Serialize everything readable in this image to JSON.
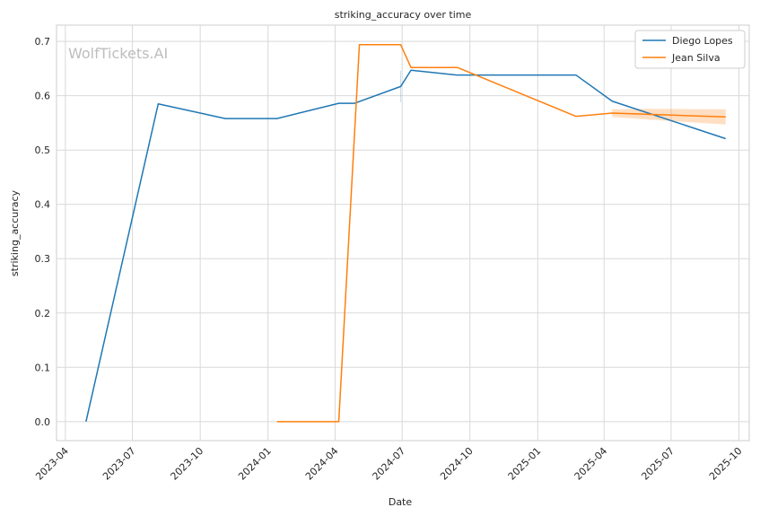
{
  "chart_data": {
    "type": "line",
    "title": "striking_accuracy over time",
    "xlabel": "Date",
    "ylabel": "striking_accuracy",
    "watermark": "WolfTickets.AI",
    "x_range": [
      "2023-03-20",
      "2025-10-15"
    ],
    "ylim": [
      -0.035,
      0.73
    ],
    "x_ticks": [
      {
        "date": "2023-04-01",
        "label": "2023-04"
      },
      {
        "date": "2023-07-01",
        "label": "2023-07"
      },
      {
        "date": "2023-10-01",
        "label": "2023-10"
      },
      {
        "date": "2024-01-01",
        "label": "2024-01"
      },
      {
        "date": "2024-04-01",
        "label": "2024-04"
      },
      {
        "date": "2024-07-01",
        "label": "2024-07"
      },
      {
        "date": "2024-10-01",
        "label": "2024-10"
      },
      {
        "date": "2025-01-01",
        "label": "2025-01"
      },
      {
        "date": "2025-04-01",
        "label": "2025-04"
      },
      {
        "date": "2025-07-01",
        "label": "2025-07"
      },
      {
        "date": "2025-10-01",
        "label": "2025-10"
      }
    ],
    "y_ticks": [
      {
        "value": 0.0,
        "label": "0.0"
      },
      {
        "value": 0.1,
        "label": "0.1"
      },
      {
        "value": 0.2,
        "label": "0.2"
      },
      {
        "value": 0.3,
        "label": "0.3"
      },
      {
        "value": 0.4,
        "label": "0.4"
      },
      {
        "value": 0.5,
        "label": "0.5"
      },
      {
        "value": 0.6,
        "label": "0.6"
      },
      {
        "value": 0.7,
        "label": "0.7"
      }
    ],
    "grid": true,
    "legend_position": "top-right",
    "series": [
      {
        "name": "Diego Lopes",
        "color": "#1f77b4",
        "points": [
          {
            "x": "2023-04-29",
            "y": 0.0
          },
          {
            "x": "2023-08-05",
            "y": 0.585
          },
          {
            "x": "2023-11-04",
            "y": 0.558
          },
          {
            "x": "2024-01-13",
            "y": 0.558
          },
          {
            "x": "2024-04-06",
            "y": 0.586
          },
          {
            "x": "2024-04-27",
            "y": 0.586
          },
          {
            "x": "2024-06-29",
            "y": 0.617
          },
          {
            "x": "2024-07-13",
            "y": 0.647
          },
          {
            "x": "2024-09-14",
            "y": 0.638
          },
          {
            "x": "2024-10-05",
            "y": 0.638
          },
          {
            "x": "2025-02-22",
            "y": 0.638
          },
          {
            "x": "2025-04-12",
            "y": 0.59
          },
          {
            "x": "2025-09-13",
            "y": 0.521
          }
        ],
        "bands": [
          {
            "x": "2024-06-29",
            "low": 0.588,
            "high": 0.646
          }
        ]
      },
      {
        "name": "Jean Silva",
        "color": "#ff7f0e",
        "points": [
          {
            "x": "2024-01-13",
            "y": 0.0
          },
          {
            "x": "2024-04-06",
            "y": 0.0
          },
          {
            "x": "2024-05-04",
            "y": 0.694
          },
          {
            "x": "2024-06-29",
            "y": 0.694
          },
          {
            "x": "2024-07-13",
            "y": 0.652
          },
          {
            "x": "2024-09-14",
            "y": 0.652
          },
          {
            "x": "2025-02-22",
            "y": 0.562
          },
          {
            "x": "2025-04-12",
            "y": 0.568
          },
          {
            "x": "2025-09-13",
            "y": 0.561
          }
        ],
        "bands": [
          {
            "x": "2025-04-12",
            "low": 0.561,
            "high": 0.575
          },
          {
            "x": "2025-06-01",
            "low": 0.556,
            "high": 0.576
          },
          {
            "x": "2025-09-13",
            "low": 0.547,
            "high": 0.575
          }
        ]
      }
    ]
  }
}
